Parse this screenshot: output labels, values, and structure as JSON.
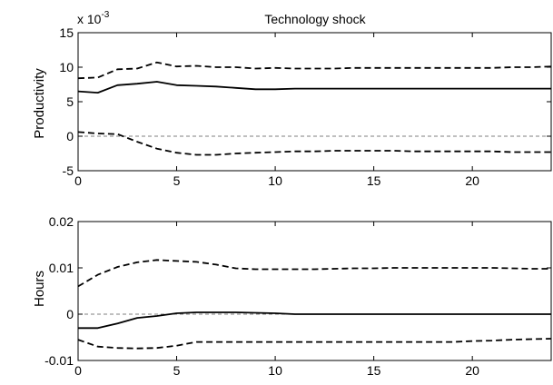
{
  "chart_data": [
    {
      "type": "line",
      "title": "Technology shock",
      "xlabel": "",
      "ylabel": "Productivity",
      "y_exponent_label": {
        "base": "x 10",
        "power": "-3"
      },
      "xlim": [
        0,
        24
      ],
      "ylim": [
        -5,
        15
      ],
      "xticks": [
        "0",
        "5",
        "10",
        "15",
        "20"
      ],
      "yticks": [
        "-5",
        "0",
        "5",
        "10",
        "15"
      ],
      "zero_line": "dashed",
      "x": [
        0,
        1,
        2,
        3,
        4,
        5,
        6,
        7,
        8,
        9,
        10,
        11,
        12,
        13,
        14,
        15,
        16,
        17,
        18,
        19,
        20,
        21,
        22,
        23,
        24
      ],
      "series": [
        {
          "style": "solid",
          "values": [
            6.5,
            6.3,
            7.4,
            7.6,
            7.9,
            7.4,
            7.3,
            7.2,
            7.0,
            6.8,
            6.8,
            6.9,
            6.9,
            6.9,
            6.9,
            6.9,
            6.9,
            6.9,
            6.9,
            6.9,
            6.9,
            6.9,
            6.9,
            6.9,
            6.9
          ]
        },
        {
          "style": "dashed",
          "values": [
            8.4,
            8.5,
            9.7,
            9.8,
            10.7,
            10.1,
            10.2,
            10.0,
            10.0,
            9.8,
            9.9,
            9.8,
            9.8,
            9.8,
            9.9,
            9.9,
            9.9,
            9.9,
            9.9,
            9.9,
            9.9,
            9.9,
            10.0,
            10.0,
            10.1
          ]
        },
        {
          "style": "dashed",
          "values": [
            0.6,
            0.4,
            0.3,
            -0.8,
            -1.8,
            -2.4,
            -2.7,
            -2.7,
            -2.5,
            -2.4,
            -2.3,
            -2.2,
            -2.2,
            -2.1,
            -2.1,
            -2.1,
            -2.1,
            -2.2,
            -2.2,
            -2.2,
            -2.2,
            -2.2,
            -2.3,
            -2.3,
            -2.3
          ]
        }
      ]
    },
    {
      "type": "line",
      "title": "",
      "xlabel": "",
      "ylabel": "Hours",
      "xlim": [
        0,
        24
      ],
      "ylim": [
        -0.01,
        0.02
      ],
      "xticks": [
        "0",
        "5",
        "10",
        "15",
        "20"
      ],
      "yticks": [
        "-0.01",
        "0",
        "0.01",
        "0.02"
      ],
      "zero_line": "dashed",
      "x": [
        0,
        1,
        2,
        3,
        4,
        5,
        6,
        7,
        8,
        9,
        10,
        11,
        12,
        13,
        14,
        15,
        16,
        17,
        18,
        19,
        20,
        21,
        22,
        23,
        24
      ],
      "series": [
        {
          "style": "solid",
          "values": [
            -0.003,
            -0.003,
            -0.002,
            -0.0008,
            -0.0004,
            0.0002,
            0.0004,
            0.0004,
            0.0004,
            0.0003,
            0.0002,
            0.0,
            0.0,
            0.0,
            0.0,
            0.0,
            0.0,
            0.0,
            0.0,
            0.0,
            0.0,
            0.0,
            0.0,
            0.0,
            0.0
          ]
        },
        {
          "style": "dashed",
          "values": [
            0.006,
            0.0085,
            0.0102,
            0.0112,
            0.0117,
            0.0115,
            0.0113,
            0.0107,
            0.0099,
            0.0097,
            0.0097,
            0.0097,
            0.0097,
            0.0098,
            0.0099,
            0.0099,
            0.01,
            0.01,
            0.01,
            0.01,
            0.01,
            0.01,
            0.0099,
            0.0098,
            0.0098
          ]
        },
        {
          "style": "dashed",
          "values": [
            -0.0055,
            -0.007,
            -0.0073,
            -0.0074,
            -0.0073,
            -0.0068,
            -0.006,
            -0.006,
            -0.006,
            -0.006,
            -0.006,
            -0.006,
            -0.006,
            -0.006,
            -0.006,
            -0.006,
            -0.006,
            -0.006,
            -0.006,
            -0.006,
            -0.0058,
            -0.0057,
            -0.0055,
            -0.0054,
            -0.0053
          ]
        }
      ]
    }
  ]
}
